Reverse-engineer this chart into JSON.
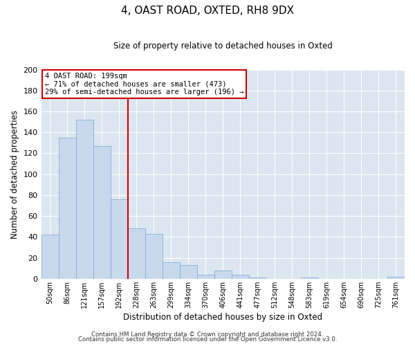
{
  "title": "4, OAST ROAD, OXTED, RH8 9DX",
  "subtitle": "Size of property relative to detached houses in Oxted",
  "xlabel": "Distribution of detached houses by size in Oxted",
  "ylabel": "Number of detached properties",
  "bar_color": "#c8d9ed",
  "bar_edgecolor": "#85afd4",
  "bg_color": "#dce6f0",
  "fig_bg_color": "#f0f4f8",
  "grid_color": "#ffffff",
  "annotation_box_edgecolor": "#cc0000",
  "vline_color": "#cc0000",
  "categories": [
    "50sqm",
    "86sqm",
    "121sqm",
    "157sqm",
    "192sqm",
    "228sqm",
    "263sqm",
    "299sqm",
    "334sqm",
    "370sqm",
    "406sqm",
    "441sqm",
    "477sqm",
    "512sqm",
    "548sqm",
    "583sqm",
    "619sqm",
    "654sqm",
    "690sqm",
    "725sqm",
    "761sqm"
  ],
  "values": [
    42,
    135,
    152,
    127,
    76,
    48,
    43,
    16,
    13,
    4,
    8,
    4,
    1,
    0,
    0,
    1,
    0,
    0,
    0,
    0,
    2
  ],
  "vline_pos": 4.5,
  "ylim": [
    0,
    200
  ],
  "yticks": [
    0,
    20,
    40,
    60,
    80,
    100,
    120,
    140,
    160,
    180,
    200
  ],
  "annotation_title": "4 OAST ROAD: 199sqm",
  "annotation_line1": "← 71% of detached houses are smaller (473)",
  "annotation_line2": "29% of semi-detached houses are larger (196) →",
  "footer_line1": "Contains HM Land Registry data © Crown copyright and database right 2024.",
  "footer_line2": "Contains public sector information licensed under the Open Government Licence v3.0."
}
